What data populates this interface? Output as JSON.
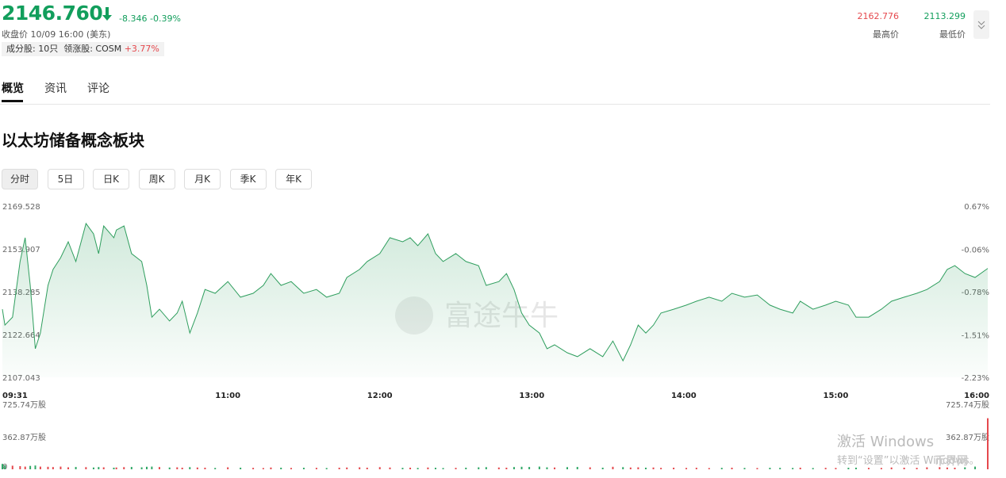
{
  "header": {
    "price": "2146.760",
    "change": "-8.346",
    "change_pct": "-0.39%",
    "close_info": "收盘价 10/09 16:00 (美东)",
    "constituents": "成分股: 10只",
    "leader": "领涨股: COSM",
    "leader_pct": "+3.77%",
    "high": "2162.776",
    "high_label": "最高价",
    "low": "2113.299",
    "low_label": "最低价"
  },
  "tabs": [
    "概览",
    "资讯",
    "评论"
  ],
  "section_title": "以太坊储备概念板块",
  "periods": [
    "分时",
    "5日",
    "日K",
    "周K",
    "月K",
    "季K",
    "年K"
  ],
  "watermarks": [
    "富途牛牛",
    "激活 Windows",
    "转到“设置”以激活 Windows。",
    "币界网"
  ],
  "chart_data": {
    "type": "line",
    "color": "#2f9e5e",
    "grid": false,
    "x": [
      "09:31",
      "09:32",
      "09:35",
      "09:38",
      "09:40",
      "09:42",
      "09:44",
      "09:46",
      "09:49",
      "09:51",
      "09:54",
      "09:57",
      "10:00",
      "10:04",
      "10:07",
      "10:09",
      "10:11",
      "10:15",
      "10:16",
      "10:19",
      "10:22",
      "10:26",
      "10:28",
      "10:30",
      "10:33",
      "10:37",
      "10:40",
      "10:42",
      "10:45",
      "10:48",
      "10:51",
      "10:55",
      "11:00",
      "11:05",
      "11:10",
      "11:14",
      "11:17",
      "11:21",
      "11:25",
      "11:30",
      "11:35",
      "11:39",
      "11:44",
      "11:47",
      "11:52",
      "11:55",
      "12:00",
      "12:04",
      "12:09",
      "12:12",
      "12:15",
      "12:19",
      "12:22",
      "12:25",
      "12:30",
      "12:34",
      "12:39",
      "12:42",
      "12:47",
      "12:50",
      "12:53",
      "12:56",
      "12:59",
      "13:03",
      "13:06",
      "13:09",
      "13:14",
      "13:18",
      "13:23",
      "13:28",
      "13:32",
      "13:36",
      "13:39",
      "13:42",
      "13:45",
      "13:48",
      "13:51",
      "13:56",
      "14:01",
      "14:05",
      "14:10",
      "14:15",
      "14:19",
      "14:24",
      "14:29",
      "14:34",
      "14:38",
      "14:43",
      "14:46",
      "14:51",
      "14:56",
      "15:00",
      "15:05",
      "15:08",
      "15:13",
      "15:18",
      "15:22",
      "15:27",
      "15:32",
      "15:36",
      "15:41",
      "15:44",
      "15:47",
      "15:51",
      "15:55",
      "16:00"
    ],
    "values": [
      2131.9,
      2126.1,
      2129.0,
      2149.3,
      2158.0,
      2140.6,
      2117.5,
      2123.2,
      2140.6,
      2146.4,
      2150.7,
      2156.5,
      2149.3,
      2163.2,
      2159.4,
      2152.2,
      2162.3,
      2158.0,
      2160.8,
      2162.3,
      2152.2,
      2149.3,
      2140.6,
      2129.0,
      2131.9,
      2127.6,
      2130.5,
      2134.8,
      2123.2,
      2130.5,
      2139.1,
      2137.7,
      2142.0,
      2136.3,
      2137.7,
      2140.6,
      2144.9,
      2140.6,
      2142.0,
      2137.7,
      2139.1,
      2136.3,
      2137.7,
      2143.5,
      2146.4,
      2149.3,
      2152.2,
      2158.0,
      2156.5,
      2158.0,
      2155.1,
      2159.4,
      2152.2,
      2149.3,
      2152.2,
      2149.3,
      2147.8,
      2140.6,
      2142.0,
      2144.9,
      2139.1,
      2130.5,
      2126.1,
      2123.2,
      2117.5,
      2118.9,
      2116.0,
      2114.6,
      2117.5,
      2114.6,
      2120.3,
      2113.1,
      2118.9,
      2126.1,
      2123.2,
      2126.1,
      2130.5,
      2131.9,
      2133.4,
      2134.8,
      2136.3,
      2134.8,
      2137.7,
      2136.3,
      2137.1,
      2133.4,
      2131.9,
      2130.5,
      2134.8,
      2131.9,
      2133.4,
      2134.8,
      2133.4,
      2129.0,
      2129.0,
      2131.9,
      2134.8,
      2136.3,
      2137.7,
      2139.1,
      2142.0,
      2146.4,
      2147.8,
      2144.9,
      2143.5,
      2146.8
    ],
    "xlim": [
      "09:31",
      "16:00"
    ],
    "xticks": [
      "09:31",
      "11:00",
      "12:00",
      "13:00",
      "14:00",
      "15:00",
      "16:00"
    ],
    "ylim": [
      2107.043,
      2169.528
    ],
    "yticks": [
      2169.528,
      2153.907,
      2138.285,
      2122.664,
      2107.043
    ],
    "y2lim": [
      -2.23,
      0.67
    ],
    "y2ticks": [
      {
        "value": 0.67,
        "label": "0.67%"
      },
      {
        "value": -0.06,
        "label": "-0.06%"
      },
      {
        "value": -0.78,
        "label": "-0.78%"
      },
      {
        "value": -1.51,
        "label": "-1.51%"
      },
      {
        "value": -2.23,
        "label": "-2.23%"
      }
    ],
    "volume": {
      "type": "bar",
      "up_color": "#e5484d",
      "down_color": "#2fa866",
      "values": [
        60,
        45,
        40,
        35,
        30,
        38,
        42,
        30,
        28,
        25,
        30,
        22,
        26,
        24,
        20,
        25,
        22,
        18,
        20,
        24,
        26,
        22,
        28,
        30,
        25,
        20,
        22,
        18,
        24,
        20,
        18,
        15,
        22,
        18,
        16,
        14,
        20,
        18,
        15,
        17,
        16,
        14,
        18,
        20,
        22,
        18,
        24,
        20,
        16,
        18,
        15,
        20,
        17,
        14,
        16,
        18,
        22,
        24,
        20,
        18,
        25,
        28,
        26,
        30,
        22,
        20,
        24,
        26,
        22,
        18,
        28,
        24,
        20,
        22,
        18,
        20,
        16,
        18,
        15,
        17,
        14,
        16,
        18,
        15,
        14,
        17,
        16,
        15,
        18,
        14,
        16,
        15,
        17,
        18,
        16,
        15,
        20,
        18,
        16,
        22,
        24,
        20,
        18,
        22,
        30,
        570
      ],
      "ylim": [
        0,
        725.74
      ],
      "yticks": [
        {
          "value": 725.74,
          "label": "725.74万股"
        },
        {
          "value": 362.87,
          "label": "362.87万股"
        },
        0
      ]
    }
  }
}
